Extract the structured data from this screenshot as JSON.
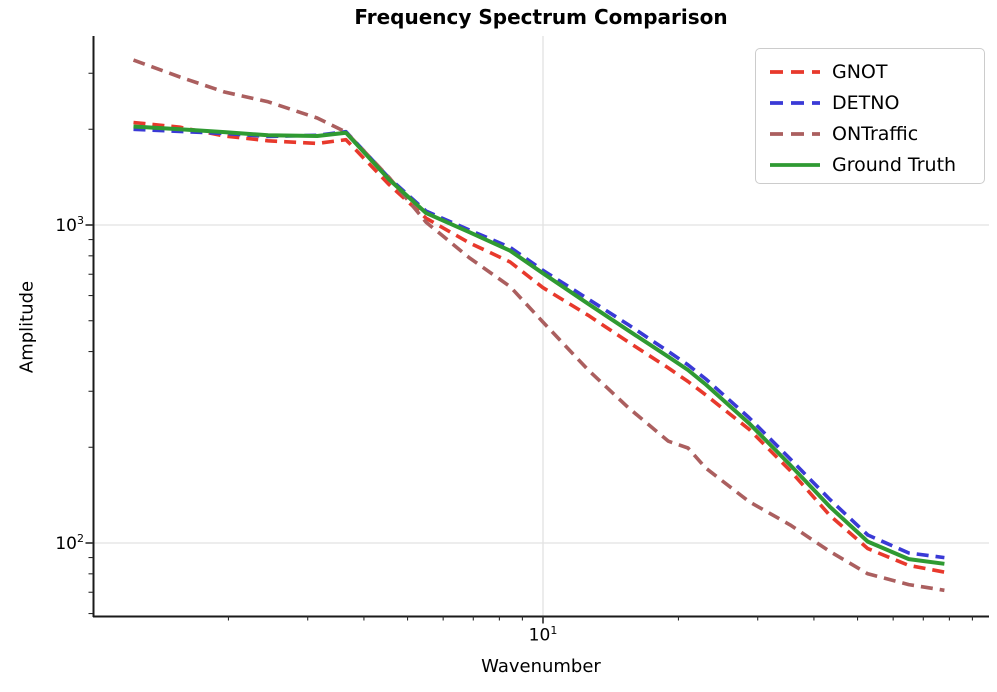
{
  "title": "Frequency Spectrum Comparison",
  "chart_data": {
    "type": "line",
    "title": "Frequency Spectrum Comparison",
    "xlabel": "Wavenumber",
    "ylabel": "Amplitude",
    "x_scale": "log",
    "y_scale": "log",
    "xlim": [
      1,
      98
    ],
    "ylim": [
      59,
      3900
    ],
    "grid": true,
    "legend_position": "upper right",
    "x": [
      1.23,
      1.56,
      1.96,
      2.45,
      3.15,
      3.65,
      4.55,
      5.5,
      6.85,
      8.45,
      10,
      12.6,
      15.5,
      19,
      21,
      23,
      28.7,
      35.4,
      43.4,
      52.7,
      65,
      78
    ],
    "series": [
      {
        "name": "GNOT",
        "color": "#e8392c",
        "style": "dashed",
        "values": [
          2100,
          2030,
          1905,
          1840,
          1805,
          1855,
          1340,
          1050,
          880,
          765,
          635,
          520,
          428,
          355,
          322,
          292,
          228,
          169,
          122,
          96,
          85,
          81
        ]
      },
      {
        "name": "DETNO",
        "color": "#3a3ad6",
        "style": "dashed",
        "values": [
          2000,
          1970,
          1940,
          1900,
          1915,
          1965,
          1405,
          1105,
          965,
          850,
          720,
          585,
          485,
          400,
          363,
          328,
          248,
          184,
          137,
          106,
          93,
          90
        ]
      },
      {
        "name": "ONTraffic",
        "color": "#ab5f5f",
        "style": "dashed",
        "values": [
          3300,
          2920,
          2620,
          2440,
          2170,
          1960,
          1410,
          1020,
          790,
          640,
          495,
          350,
          266,
          209,
          199,
          172,
          135,
          114,
          94,
          80,
          74,
          71
        ]
      },
      {
        "name": "Ground Truth",
        "color": "#2f9a32",
        "style": "solid",
        "values": [
          2040,
          2000,
          1960,
          1915,
          1905,
          1950,
          1390,
          1090,
          950,
          830,
          705,
          565,
          465,
          385,
          350,
          315,
          238,
          176,
          130,
          101,
          89,
          86
        ]
      }
    ],
    "x_major_ticks": [
      {
        "value": 10,
        "base": "10",
        "exp": "1"
      }
    ],
    "y_major_ticks": [
      {
        "value": 1000,
        "base": "10",
        "exp": "3"
      },
      {
        "value": 100,
        "base": "10",
        "exp": "2"
      }
    ],
    "x_minor_ticks": [
      2,
      3,
      4,
      5,
      6,
      7,
      8,
      9,
      20,
      30,
      40,
      50,
      60,
      70,
      80,
      90
    ],
    "y_minor_ticks": [
      60,
      70,
      80,
      90,
      200,
      300,
      400,
      500,
      600,
      700,
      800,
      900,
      2000,
      3000
    ],
    "colors": {
      "grid": "#e2e2e2",
      "spine": "#1a1a1a",
      "tick": "#2a2a2a"
    }
  }
}
